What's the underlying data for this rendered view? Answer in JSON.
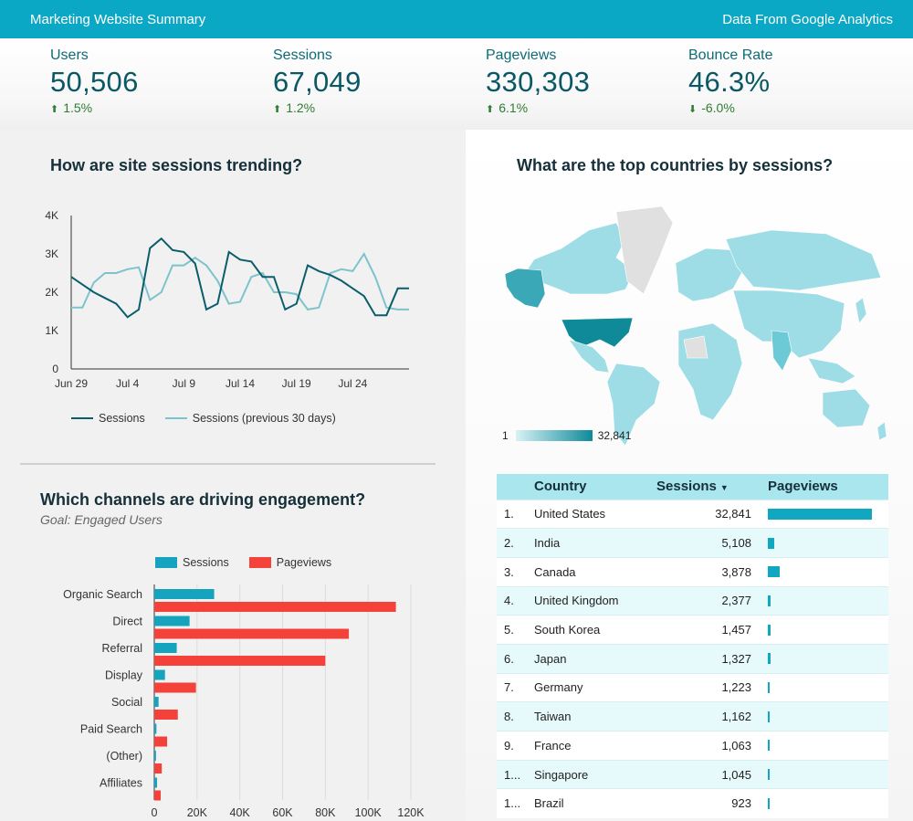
{
  "header": {
    "title": "Marketing Website Summary",
    "source": "Data From Google Analytics"
  },
  "kpis": [
    {
      "label": "Users",
      "value": "50,506",
      "delta": "1.5%",
      "direction": "up"
    },
    {
      "label": "Sessions",
      "value": "67,049",
      "delta": "1.2%",
      "direction": "up"
    },
    {
      "label": "Pageviews",
      "value": "330,303",
      "delta": "6.1%",
      "direction": "up"
    },
    {
      "label": "Bounce Rate",
      "value": "46.3%",
      "delta": "-6.0%",
      "direction": "down"
    }
  ],
  "sessions_trend": {
    "title": "How are site sessions trending?"
  },
  "countries_map": {
    "title": "What are the top countries by sessions?",
    "scale_min": "1",
    "scale_max": "32,841"
  },
  "channels": {
    "title": "Which channels are driving engagement?",
    "subtitle": "Goal: Engaged Users"
  },
  "colors": {
    "header": "#0aa8c4",
    "sessions_line": "#0b5d6b",
    "previous_line": "#7cc3cc",
    "bar_sessions": "#16a3bd",
    "bar_pageviews": "#f4413a",
    "positive": "#2e7d32"
  },
  "country_table": {
    "columns": [
      "Country",
      "Sessions",
      "Pageviews"
    ],
    "sort_indicator": "▼",
    "rows": [
      {
        "rank": "1.",
        "country": "United States",
        "sessions": "32,841",
        "pageviews_share": 1.0
      },
      {
        "rank": "2.",
        "country": "India",
        "sessions": "5,108",
        "pageviews_share": 0.06
      },
      {
        "rank": "3.",
        "country": "Canada",
        "sessions": "3,878",
        "pageviews_share": 0.11
      },
      {
        "rank": "4.",
        "country": "United Kingdom",
        "sessions": "2,377",
        "pageviews_share": 0.03
      },
      {
        "rank": "5.",
        "country": "South Korea",
        "sessions": "1,457",
        "pageviews_share": 0.03
      },
      {
        "rank": "6.",
        "country": "Japan",
        "sessions": "1,327",
        "pageviews_share": 0.03
      },
      {
        "rank": "7.",
        "country": "Germany",
        "sessions": "1,223",
        "pageviews_share": 0.015
      },
      {
        "rank": "8.",
        "country": "Taiwan",
        "sessions": "1,162",
        "pageviews_share": 0.015
      },
      {
        "rank": "9.",
        "country": "France",
        "sessions": "1,063",
        "pageviews_share": 0.015
      },
      {
        "rank": "1...",
        "country": "Singapore",
        "sessions": "1,045",
        "pageviews_share": 0.015
      },
      {
        "rank": "1...",
        "country": "Brazil",
        "sessions": "923",
        "pageviews_share": 0.015
      }
    ]
  },
  "chart_data": [
    {
      "type": "line",
      "x_ticks": [
        "Jun 29",
        "Jul 4",
        "Jul 9",
        "Jul 14",
        "Jul 19",
        "Jul 24"
      ],
      "y_ticks": [
        "0",
        "1K",
        "2K",
        "3K",
        "4K"
      ],
      "ylim": [
        0,
        4000
      ],
      "series": [
        {
          "name": "Sessions",
          "values": [
            2400,
            2200,
            2000,
            1850,
            1700,
            1350,
            1550,
            3150,
            3400,
            3100,
            3050,
            2750,
            1550,
            1700,
            3050,
            2850,
            2800,
            2400,
            2400,
            1550,
            1700,
            2700,
            2550,
            2450,
            2300,
            2100,
            1900,
            1400,
            1400,
            2100,
            2100
          ]
        },
        {
          "name": "Sessions (previous 30 days)",
          "values": [
            1600,
            1600,
            2250,
            2500,
            2500,
            2600,
            2650,
            1800,
            2000,
            2700,
            2700,
            2900,
            2700,
            2300,
            1700,
            1750,
            2400,
            2500,
            2000,
            2000,
            1950,
            1550,
            1600,
            2500,
            2600,
            2550,
            3000,
            2400,
            1600,
            1550,
            1550
          ]
        }
      ]
    },
    {
      "type": "bar",
      "orientation": "horizontal",
      "categories": [
        "Organic Search",
        "Direct",
        "Referral",
        "Display",
        "Social",
        "Paid Search",
        "(Other)",
        "Affiliates"
      ],
      "x_ticks": [
        "0",
        "20K",
        "40K",
        "60K",
        "80K",
        "100K",
        "120K"
      ],
      "xlim": [
        0,
        120000
      ],
      "series": [
        {
          "name": "Sessions",
          "values": [
            28000,
            16500,
            10500,
            5000,
            2000,
            1000,
            800,
            1300
          ]
        },
        {
          "name": "Pageviews",
          "values": [
            113000,
            91000,
            80000,
            19500,
            11000,
            6000,
            3500,
            3000
          ]
        }
      ]
    }
  ]
}
